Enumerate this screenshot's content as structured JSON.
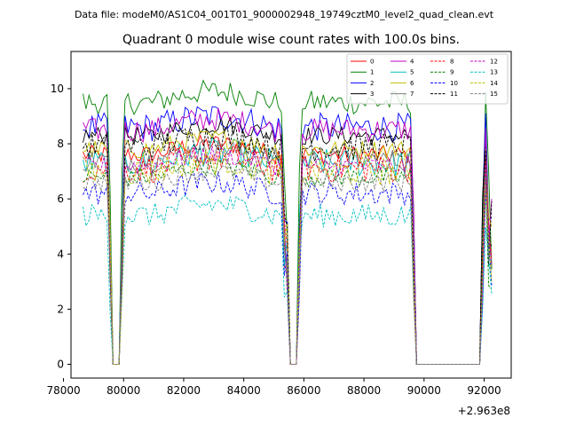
{
  "chart_data": {
    "type": "line",
    "suptitle": "Data file: modeM0/AS1C04_001T01_9000002948_19749cztM0_level2_quad_clean.evt",
    "title": "Quadrant 0 module wise count rates with 100.0s bins.",
    "xlabel": "",
    "ylabel": "",
    "x_offset_label": "+2.963e8",
    "xlim": [
      78250,
      92900
    ],
    "ylim": [
      -0.5,
      11.35
    ],
    "x_ticks": [
      78000,
      80000,
      82000,
      84000,
      86000,
      88000,
      90000,
      92000
    ],
    "x_tick_labels": [
      "78000",
      "80000",
      "82000",
      "84000",
      "86000",
      "88000",
      "90000",
      "92000"
    ],
    "y_ticks": [
      0,
      2,
      4,
      6,
      8,
      10
    ],
    "y_tick_labels": [
      "0",
      "2",
      "4",
      "6",
      "8",
      "10"
    ],
    "legend_position": "upper-right",
    "grid": false,
    "series": [
      {
        "name": "0",
        "color": "#ff0000",
        "dash": "solid",
        "level": 7.6
      },
      {
        "name": "1",
        "color": "#008000",
        "dash": "solid",
        "level": 9.5
      },
      {
        "name": "2",
        "color": "#0000ff",
        "dash": "solid",
        "level": 8.6
      },
      {
        "name": "3",
        "color": "#000000",
        "dash": "solid",
        "level": 8.3
      },
      {
        "name": "4",
        "color": "#c000c0",
        "dash": "solid",
        "level": 8.5
      },
      {
        "name": "5",
        "color": "#00bfbf",
        "dash": "solid",
        "level": 7.3
      },
      {
        "name": "6",
        "color": "#bfbf00",
        "dash": "solid",
        "level": 7.8
      },
      {
        "name": "7",
        "color": "#808080",
        "dash": "solid",
        "level": 7.4
      },
      {
        "name": "8",
        "color": "#ff0000",
        "dash": "dashed",
        "level": 7.1
      },
      {
        "name": "9",
        "color": "#008000",
        "dash": "dashed",
        "level": 6.8
      },
      {
        "name": "10",
        "color": "#0000ff",
        "dash": "dashed",
        "level": 6.2
      },
      {
        "name": "11",
        "color": "#000000",
        "dash": "dashed",
        "level": 7.9
      },
      {
        "name": "12",
        "color": "#c000c0",
        "dash": "dashed",
        "level": 7.2
      },
      {
        "name": "13",
        "color": "#00bfbf",
        "dash": "dashed",
        "level": 5.4
      },
      {
        "name": "14",
        "color": "#bfbf00",
        "dash": "dashed",
        "level": 7.0
      },
      {
        "name": "15",
        "color": "#808080",
        "dash": "dashed",
        "level": 6.6
      }
    ],
    "time_profile": {
      "x_start": 78650,
      "x_end": 92250,
      "bin": 100,
      "active_ranges": [
        [
          78650,
          79450
        ],
        [
          80050,
          85300
        ],
        [
          85950,
          89550
        ],
        [
          92050,
          92120
        ]
      ],
      "ramp_ranges": [
        [
          79450,
          79550
        ],
        [
          79950,
          80050
        ],
        [
          85300,
          85450
        ],
        [
          85800,
          85950
        ],
        [
          89550,
          89650
        ],
        [
          91950,
          92050
        ],
        [
          92120,
          92250
        ]
      ],
      "noise_amplitude": 0.35
    }
  }
}
